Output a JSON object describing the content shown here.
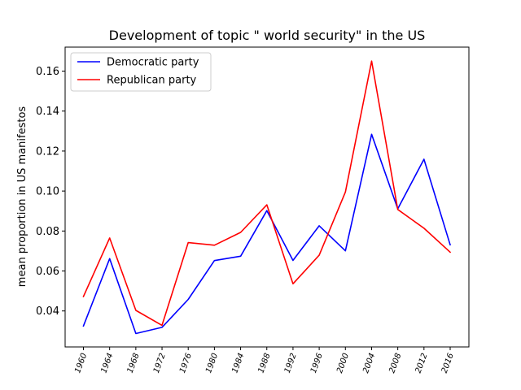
{
  "chart_data": {
    "type": "line",
    "title": "Development of topic \" world security\" in the US",
    "xlabel": "",
    "ylabel": "mean proportion in US manifestos",
    "categories": [
      "1960",
      "1964",
      "1968",
      "1972",
      "1976",
      "1980",
      "1984",
      "1988",
      "1992",
      "1996",
      "2000",
      "2004",
      "2008",
      "2012",
      "2016"
    ],
    "ylim": [
      0.022,
      0.172
    ],
    "yticks": [
      0.04,
      0.06,
      0.08,
      0.1,
      0.12,
      0.14,
      0.16
    ],
    "ytick_labels": [
      "0.04",
      "0.06",
      "0.08",
      "0.10",
      "0.12",
      "0.14",
      "0.16"
    ],
    "grid": false,
    "legend_position": "top-left",
    "series": [
      {
        "name": "Democratic party",
        "color": "#0000ff",
        "values": [
          0.0325,
          0.0662,
          0.0287,
          0.0318,
          0.0458,
          0.0652,
          0.0674,
          0.0902,
          0.0653,
          0.0826,
          0.0701,
          0.1284,
          0.0911,
          0.1159,
          0.0731
        ]
      },
      {
        "name": "Republican party",
        "color": "#ff0000",
        "values": [
          0.0472,
          0.0765,
          0.0403,
          0.0328,
          0.0742,
          0.0729,
          0.0793,
          0.0931,
          0.0536,
          0.0679,
          0.0995,
          0.165,
          0.0908,
          0.0814,
          0.0694
        ]
      }
    ]
  }
}
